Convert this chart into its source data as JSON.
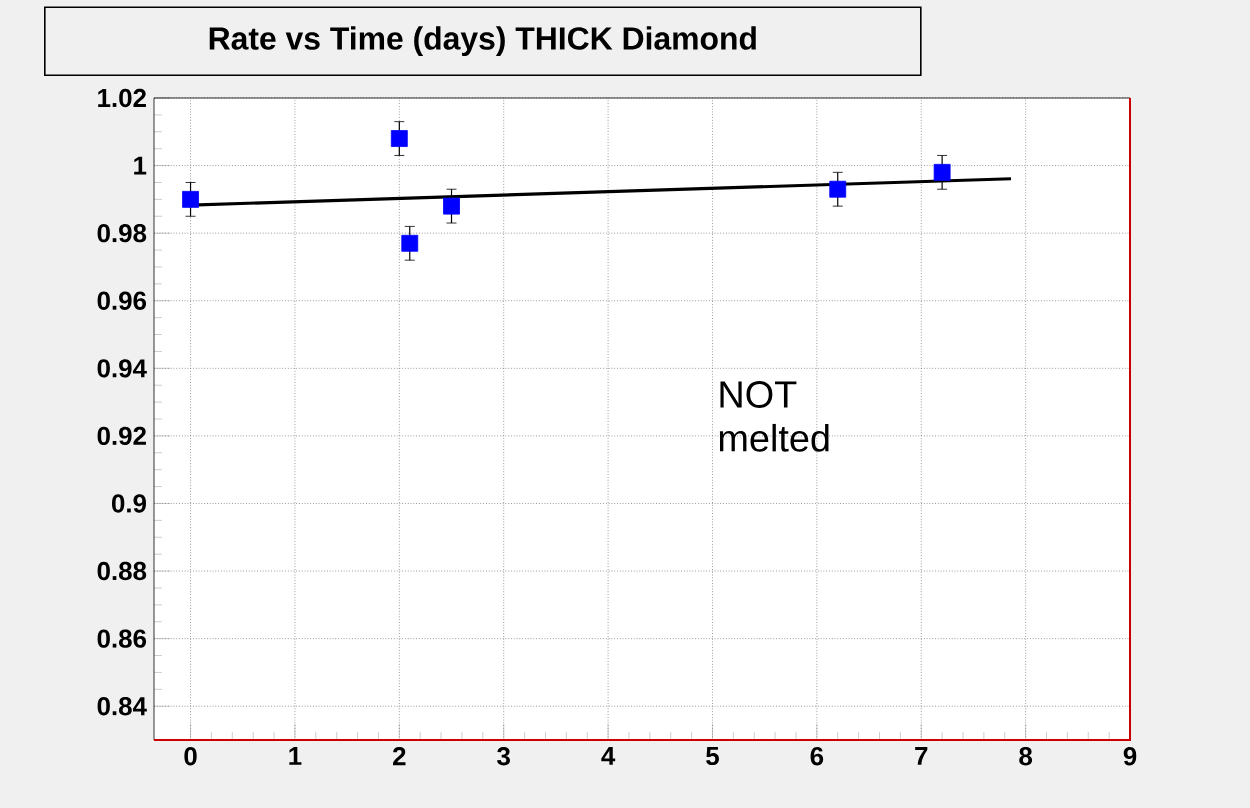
{
  "chart_data": {
    "type": "scatter",
    "title": "Rate vs Time (days)  THICK Diamond",
    "annotations": [
      "NOT melted"
    ],
    "series": [
      {
        "marker": "square",
        "color": "#0000ff",
        "x": [
          0,
          2,
          2.1,
          2.5,
          6.2,
          7.2
        ],
        "values": [
          0.99,
          1.008,
          0.977,
          0.988,
          0.993,
          0.998
        ],
        "errors": [
          0.005,
          0.005,
          0.005,
          0.005,
          0.005,
          0.005
        ]
      },
      {
        "type": "line",
        "color": "#000000",
        "x": [
          0,
          7.86
        ],
        "values": [
          0.9883,
          0.9961
        ]
      }
    ],
    "xlim": [
      -0.35,
      9
    ],
    "ylim": [
      0.83,
      1.02
    ],
    "xticks": [
      0,
      1,
      2,
      3,
      4,
      5,
      6,
      7,
      8,
      9
    ],
    "yticks": [
      0.84,
      0.86,
      0.88,
      0.9,
      0.92,
      0.94,
      0.96,
      0.98,
      1,
      1.02
    ],
    "grid": true
  }
}
